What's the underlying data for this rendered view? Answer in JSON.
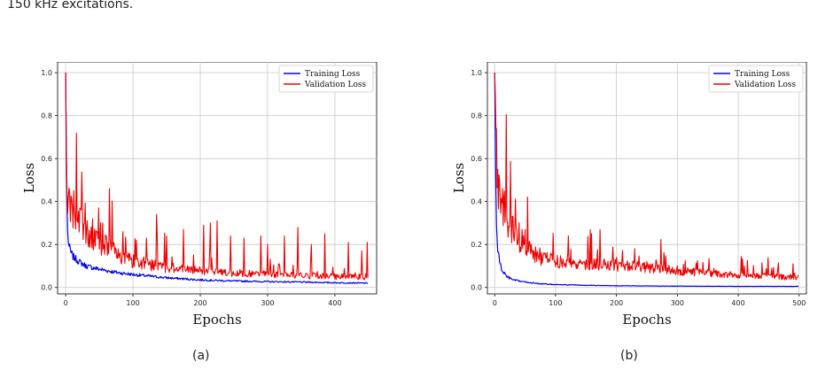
{
  "caption": {
    "line1_fragment": "",
    "line2": "150 kHz excitations."
  },
  "chart_data": [
    {
      "type": "line",
      "label": "(a)",
      "xlabel": "Epochs",
      "ylabel": "Loss",
      "xlim": [
        -12,
        462
      ],
      "ylim": [
        -0.03,
        1.05
      ],
      "xticks": [
        0,
        100,
        200,
        300,
        400
      ],
      "yticks": [
        0.0,
        0.2,
        0.4,
        0.6,
        0.8,
        1.0
      ],
      "grid": true,
      "legend": "top-right",
      "epochs": 450,
      "series": [
        {
          "name": "Training Loss",
          "color": "#0000ee",
          "x": [
            0,
            1,
            2,
            3,
            5,
            8,
            12,
            20,
            30,
            50,
            75,
            100,
            150,
            200,
            250,
            300,
            350,
            400,
            449
          ],
          "y": [
            1.0,
            0.6,
            0.38,
            0.25,
            0.19,
            0.16,
            0.14,
            0.12,
            0.1,
            0.085,
            0.07,
            0.06,
            0.045,
            0.035,
            0.03,
            0.027,
            0.025,
            0.022,
            0.02
          ]
        },
        {
          "name": "Validation Loss",
          "color": "#ee0000",
          "x": [
            0,
            1,
            2,
            3,
            5,
            8,
            12,
            20,
            30,
            50,
            65,
            75,
            100,
            130,
            150,
            200,
            230,
            250,
            300,
            350,
            400,
            449
          ],
          "y": [
            1.0,
            0.7,
            0.45,
            0.38,
            0.36,
            0.34,
            0.33,
            0.3,
            0.26,
            0.2,
            0.19,
            0.15,
            0.12,
            0.1,
            0.09,
            0.075,
            0.07,
            0.065,
            0.06,
            0.055,
            0.05,
            0.045
          ],
          "spikes": [
            [
              6,
              0.44
            ],
            [
              12,
              0.45
            ],
            [
              25,
              0.36
            ],
            [
              40,
              0.32
            ],
            [
              55,
              0.3
            ],
            [
              65,
              0.46
            ],
            [
              85,
              0.26
            ],
            [
              105,
              0.22
            ],
            [
              120,
              0.23
            ],
            [
              135,
              0.34
            ],
            [
              150,
              0.24
            ],
            [
              175,
              0.27
            ],
            [
              205,
              0.29
            ],
            [
              215,
              0.3
            ],
            [
              225,
              0.31
            ],
            [
              245,
              0.24
            ],
            [
              265,
              0.23
            ],
            [
              290,
              0.24
            ],
            [
              300,
              0.2
            ],
            [
              325,
              0.24
            ],
            [
              345,
              0.28
            ],
            [
              365,
              0.2
            ],
            [
              385,
              0.25
            ],
            [
              420,
              0.21
            ],
            [
              440,
              0.17
            ],
            [
              448,
              0.21
            ]
          ]
        }
      ]
    },
    {
      "type": "line",
      "label": "(b)",
      "xlabel": "Epochs",
      "ylabel": "Loss",
      "xlim": [
        -12,
        512
      ],
      "ylim": [
        -0.03,
        1.05
      ],
      "xticks": [
        0,
        100,
        200,
        300,
        400,
        500
      ],
      "yticks": [
        0.0,
        0.2,
        0.4,
        0.6,
        0.8,
        1.0
      ],
      "grid": true,
      "legend": "top-right",
      "epochs": 500,
      "series": [
        {
          "name": "Training Loss",
          "color": "#0000ee",
          "x": [
            0,
            1,
            2,
            3,
            5,
            8,
            12,
            20,
            30,
            50,
            75,
            100,
            150,
            200,
            300,
            400,
            499
          ],
          "y": [
            1.0,
            0.7,
            0.45,
            0.28,
            0.18,
            0.12,
            0.08,
            0.05,
            0.035,
            0.025,
            0.017,
            0.013,
            0.01,
            0.008,
            0.006,
            0.005,
            0.005
          ]
        },
        {
          "name": "Validation Loss",
          "color": "#ee0000",
          "x": [
            0,
            1,
            2,
            3,
            4,
            5,
            8,
            12,
            20,
            30,
            50,
            75,
            100,
            150,
            200,
            250,
            300,
            350,
            400,
            450,
            499
          ],
          "y": [
            1.0,
            0.9,
            0.74,
            0.6,
            0.5,
            0.45,
            0.42,
            0.38,
            0.32,
            0.25,
            0.18,
            0.13,
            0.12,
            0.11,
            0.1,
            0.09,
            0.075,
            0.065,
            0.055,
            0.05,
            0.045
          ],
          "spikes": [
            [
              3,
              0.74
            ],
            [
              5,
              0.55
            ],
            [
              15,
              0.42
            ],
            [
              30,
              0.33
            ],
            [
              45,
              0.27
            ],
            [
              60,
              0.2
            ],
            [
              120,
              0.16
            ],
            [
              200,
              0.14
            ],
            [
              250,
              0.12
            ],
            [
              300,
              0.1
            ],
            [
              360,
              0.09
            ],
            [
              410,
              0.1
            ],
            [
              455,
              0.09
            ],
            [
              490,
              0.11
            ]
          ]
        }
      ]
    }
  ]
}
